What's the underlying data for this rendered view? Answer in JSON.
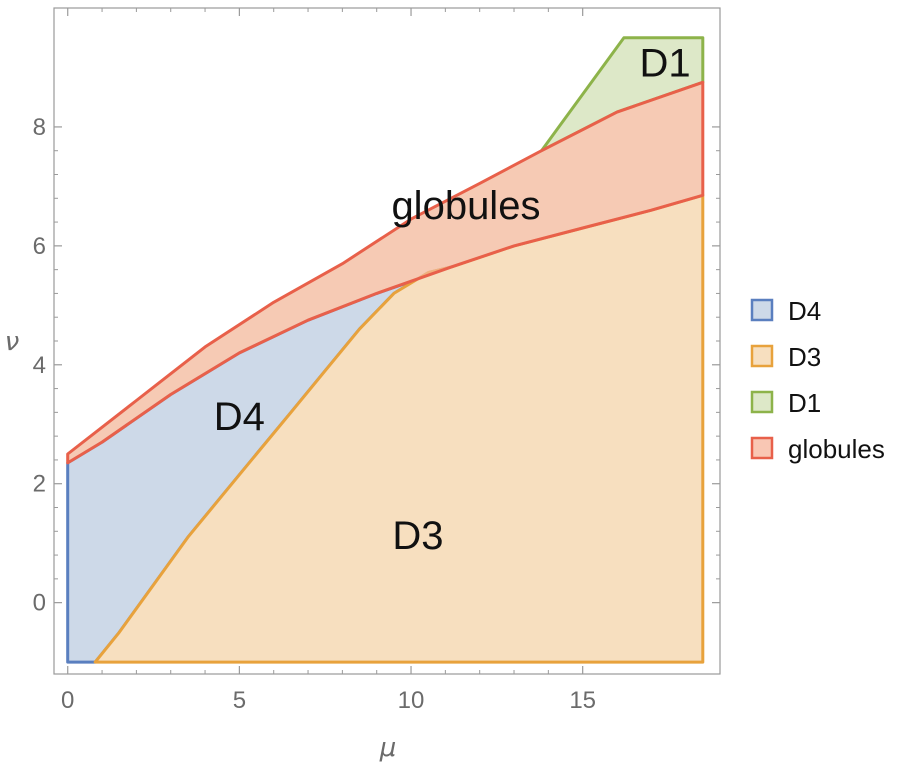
{
  "chart_data": {
    "type": "area",
    "title": "",
    "xlabel": "μ",
    "ylabel": "ν",
    "xlim": [
      -0.4,
      19.0
    ],
    "ylim": [
      -1.2,
      10.0
    ],
    "xticks": [
      0,
      5,
      10,
      15
    ],
    "yticks": [
      0,
      2,
      4,
      6,
      8
    ],
    "grid": false,
    "legend_position": "right",
    "regions": [
      {
        "name": "D4",
        "fill": "#cdd9e8",
        "stroke": "#5a7fbf",
        "boundary": [
          [
            0,
            -1
          ],
          [
            0.8,
            -1
          ],
          [
            1.5,
            -0.5
          ],
          [
            2.5,
            0.3
          ],
          [
            3.5,
            1.1
          ],
          [
            4.5,
            1.8
          ],
          [
            5.5,
            2.5
          ],
          [
            6.5,
            3.2
          ],
          [
            7.5,
            3.9
          ],
          [
            8.5,
            4.6
          ],
          [
            9.5,
            5.2
          ],
          [
            10.5,
            5.55
          ],
          [
            11.2,
            5.65
          ],
          [
            10.5,
            5.5
          ],
          [
            9,
            5.2
          ],
          [
            7,
            4.75
          ],
          [
            5,
            4.2
          ],
          [
            3,
            3.5
          ],
          [
            1,
            2.7
          ],
          [
            0,
            2.35
          ]
        ]
      },
      {
        "name": "D3",
        "fill": "#f7dfbf",
        "stroke": "#e8a23c",
        "boundary": [
          [
            0.8,
            -1
          ],
          [
            18.5,
            -1
          ],
          [
            18.5,
            6.85
          ],
          [
            17,
            6.6
          ],
          [
            15,
            6.3
          ],
          [
            13,
            6.0
          ],
          [
            11.2,
            5.65
          ],
          [
            10.5,
            5.55
          ],
          [
            9.5,
            5.2
          ],
          [
            8.5,
            4.6
          ],
          [
            7.5,
            3.9
          ],
          [
            6.5,
            3.2
          ],
          [
            5.5,
            2.5
          ],
          [
            4.5,
            1.8
          ],
          [
            3.5,
            1.1
          ],
          [
            2.5,
            0.3
          ],
          [
            1.5,
            -0.5
          ]
        ]
      },
      {
        "name": "D1",
        "fill": "#dde8c8",
        "stroke": "#8db34a",
        "boundary": [
          [
            13.8,
            7.6
          ],
          [
            15,
            8.55
          ],
          [
            16.2,
            9.5
          ],
          [
            18.5,
            9.5
          ],
          [
            18.5,
            8.75
          ],
          [
            16,
            8.25
          ],
          [
            13.8,
            7.6
          ]
        ]
      },
      {
        "name": "globules",
        "fill": "#f2b697",
        "fill_opacity": 0.72,
        "stroke": "#e8604a",
        "boundary": [
          [
            0,
            2.35
          ],
          [
            1,
            2.7
          ],
          [
            3,
            3.5
          ],
          [
            5,
            4.2
          ],
          [
            7,
            4.75
          ],
          [
            9,
            5.2
          ],
          [
            11.2,
            5.65
          ],
          [
            13,
            6.0
          ],
          [
            15,
            6.3
          ],
          [
            17,
            6.6
          ],
          [
            18.5,
            6.85
          ],
          [
            18.5,
            8.75
          ],
          [
            16,
            8.25
          ],
          [
            13.8,
            7.6
          ],
          [
            12,
            7.05
          ],
          [
            10,
            6.45
          ],
          [
            8,
            5.7
          ],
          [
            6,
            5.05
          ],
          [
            4,
            4.3
          ],
          [
            2,
            3.4
          ],
          [
            0,
            2.5
          ]
        ]
      }
    ],
    "region_labels": [
      {
        "text": "D4",
        "x": 5.0,
        "y": 2.9
      },
      {
        "text": "D3",
        "x": 10.2,
        "y": 0.9
      },
      {
        "text": "D1",
        "x": 17.4,
        "y": 8.85
      },
      {
        "text": "globules",
        "x": 11.6,
        "y": 6.45
      }
    ],
    "legend": [
      {
        "name": "D4",
        "fill": "#cdd9e8",
        "stroke": "#5a7fbf"
      },
      {
        "name": "D3",
        "fill": "#f7dfbf",
        "stroke": "#e8a23c"
      },
      {
        "name": "D1",
        "fill": "#dde8c8",
        "stroke": "#8db34a"
      },
      {
        "name": "globules",
        "fill": "#f9c7b4",
        "stroke": "#e8604a"
      }
    ]
  }
}
